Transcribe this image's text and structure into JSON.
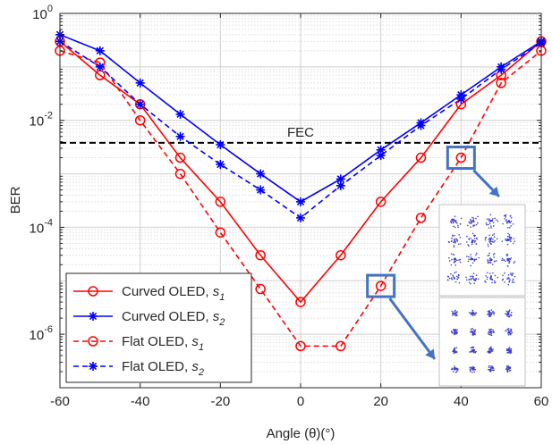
{
  "chart_data": {
    "type": "line",
    "xlabel": "Angle (θ)(°)",
    "ylabel": "BER",
    "x_scale": "linear",
    "y_scale": "log",
    "xlim": [
      -60,
      60
    ],
    "ylim": [
      1e-07,
      1
    ],
    "x_ticks": [
      -60,
      -40,
      -20,
      0,
      20,
      40,
      60
    ],
    "x_tick_labels": [
      "-60",
      "-40",
      "-20",
      "0",
      "20",
      "40",
      "60"
    ],
    "y_ticks": [
      1e-06,
      0.0001,
      0.01,
      1
    ],
    "y_tick_labels": [
      {
        "base": "10",
        "exp": "-6"
      },
      {
        "base": "10",
        "exp": "-4"
      },
      {
        "base": "10",
        "exp": "-2"
      },
      {
        "base": "10",
        "exp": "0"
      }
    ],
    "grid": true,
    "legend_position": "bottom-left",
    "fec": {
      "label": "FEC",
      "value": 0.0038,
      "color": "#000000"
    },
    "x": [
      -60,
      -50,
      -40,
      -30,
      -20,
      -10,
      0,
      10,
      20,
      30,
      40,
      50,
      60
    ],
    "series": [
      {
        "name": "Curved OLED,",
        "sub": "1",
        "color": "#ff0000",
        "line": "solid",
        "marker": "circle",
        "values": [
          0.3,
          0.07,
          0.02,
          0.002,
          0.0003,
          3e-05,
          4e-06,
          3e-05,
          0.0003,
          0.002,
          0.02,
          0.07,
          0.3
        ]
      },
      {
        "name": "Curved OLED,",
        "sub": "2",
        "color": "#0000ff",
        "line": "solid",
        "marker": "star",
        "values": [
          0.4,
          0.2,
          0.05,
          0.013,
          0.0035,
          0.001,
          0.0003,
          0.0008,
          0.0028,
          0.009,
          0.03,
          0.1,
          0.3
        ]
      },
      {
        "name": "Flat OLED,",
        "sub": "1",
        "color": "#ff0000",
        "line": "dashed",
        "marker": "circle",
        "values": [
          0.2,
          0.12,
          0.01,
          0.001,
          8e-05,
          7e-06,
          6e-07,
          6e-07,
          8e-06,
          0.00015,
          0.002,
          0.05,
          0.2
        ]
      },
      {
        "name": "Flat OLED,",
        "sub": "2",
        "color": "#0000ff",
        "line": "dashed",
        "marker": "star",
        "values": [
          0.3,
          0.1,
          0.02,
          0.005,
          0.0015,
          0.0005,
          0.00015,
          0.0006,
          0.0022,
          0.008,
          0.025,
          0.09,
          0.28
        ]
      }
    ],
    "highlighted_points": [
      {
        "series": "Flat OLED, s1",
        "x": 40,
        "y": 0.002
      },
      {
        "series": "Flat OLED, s1",
        "x": 20,
        "y": 8e-06
      }
    ],
    "callout_color": "#4472c4"
  }
}
